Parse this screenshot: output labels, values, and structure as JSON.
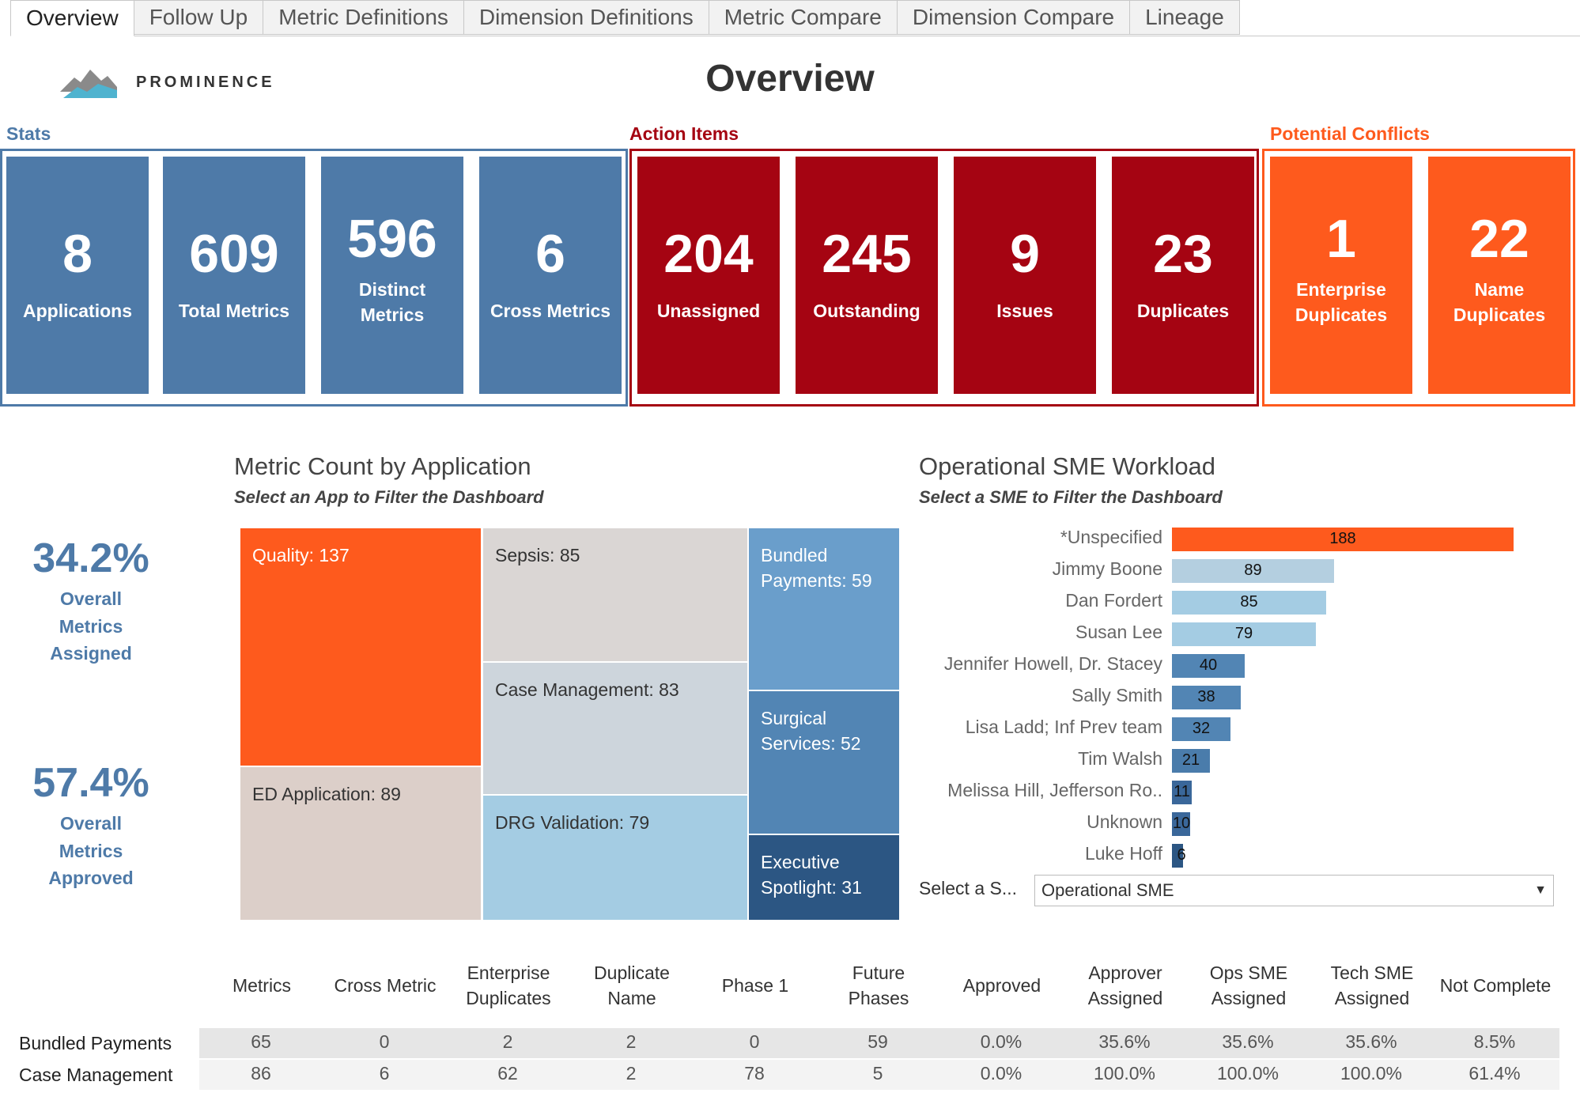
{
  "tabs": [
    "Overview",
    "Follow Up",
    "Metric Definitions",
    "Dimension Definitions",
    "Metric Compare",
    "Dimension Compare",
    "Lineage"
  ],
  "logo": {
    "text": "PROMINENCE"
  },
  "title": "Overview",
  "groups": {
    "stats": {
      "label": "Stats",
      "color": "#4e7aa8",
      "items": [
        {
          "num": "8",
          "label": "Applications"
        },
        {
          "num": "609",
          "label": "Total Metrics"
        },
        {
          "num": "596",
          "label": "Distinct Metrics"
        },
        {
          "num": "6",
          "label": "Cross Metrics"
        }
      ]
    },
    "action": {
      "label": "Action Items",
      "color": "#a50412",
      "items": [
        {
          "num": "204",
          "label": "Unassigned"
        },
        {
          "num": "245",
          "label": "Outstanding"
        },
        {
          "num": "9",
          "label": "Issues"
        },
        {
          "num": "23",
          "label": "Duplicates"
        }
      ]
    },
    "conflicts": {
      "label": "Potential Conflicts",
      "color": "#fe5a1d",
      "items": [
        {
          "num": "1",
          "label": "Enterprise Duplicates"
        },
        {
          "num": "22",
          "label": "Name Duplicates"
        }
      ]
    }
  },
  "side": {
    "assigned": {
      "pct": "34.2%",
      "caption": "Overall Metrics Assigned"
    },
    "approved": {
      "pct": "57.4%",
      "caption": "Overall Metrics Approved"
    }
  },
  "treemap": {
    "title": "Metric Count by Application",
    "subtitle": "Select an App to Filter the Dashboard",
    "cells": [
      {
        "label": "Quality: 137",
        "color": "#fe5a1d",
        "text": "#ffffff"
      },
      {
        "label": "ED Application: 89",
        "color": "#dccfc9",
        "text": "#333333"
      },
      {
        "label": "Sepsis: 85",
        "color": "#dad6d4",
        "text": "#333333"
      },
      {
        "label": "Case Management: 83",
        "color": "#cdd5dc",
        "text": "#333333"
      },
      {
        "label": "DRG Validation: 79",
        "color": "#a4cce3",
        "text": "#333333"
      },
      {
        "label": "Bundled Payments: 59",
        "color": "#6a9ecb",
        "text": "#ffffff"
      },
      {
        "label": "Surgical Services: 52",
        "color": "#5285b4",
        "text": "#ffffff"
      },
      {
        "label": "Executive Spotlight: 31",
        "color": "#2c5683",
        "text": "#ffffff"
      }
    ]
  },
  "chart_data": {
    "type": "bar",
    "title": "Operational SME Workload",
    "subtitle": "Select a SME to Filter the Dashboard",
    "categories": [
      "*Unspecified",
      "Jimmy Boone",
      "Dan Fordert",
      "Susan Lee",
      "Jennifer Howell, Dr. Stacey",
      "Sally Smith",
      "Lisa Ladd; Inf Prev team",
      "Tim Walsh",
      "Melissa Hill, Jefferson Ro..",
      "Unknown",
      "Luke Hoff"
    ],
    "values": [
      188,
      89,
      85,
      79,
      40,
      38,
      32,
      21,
      11,
      10,
      6
    ],
    "colors": [
      "#fe5a1d",
      "#b4cfe0",
      "#a4cce3",
      "#a4cce3",
      "#5285b4",
      "#5285b4",
      "#5285b4",
      "#4a7cab",
      "#3a679a",
      "#3a679a",
      "#2c5683"
    ]
  },
  "sme_select": {
    "label": "Select a S...",
    "value": "Operational SME"
  },
  "table": {
    "headers": [
      "Metrics",
      "Cross Metric",
      "Enterprise Duplicates",
      "Duplicate Name",
      "Phase 1",
      "Future Phases",
      "Approved",
      "Approver Assigned",
      "Ops SME Assigned",
      "Tech SME Assigned",
      "Not Complete"
    ],
    "rows": [
      {
        "name": "Bundled Payments",
        "cells": [
          "65",
          "0",
          "2",
          "2",
          "0",
          "59",
          "0.0%",
          "35.6%",
          "35.6%",
          "35.6%",
          "8.5%"
        ]
      },
      {
        "name": "Case Management",
        "cells": [
          "86",
          "6",
          "62",
          "2",
          "78",
          "5",
          "0.0%",
          "100.0%",
          "100.0%",
          "100.0%",
          "61.4%"
        ]
      }
    ]
  }
}
